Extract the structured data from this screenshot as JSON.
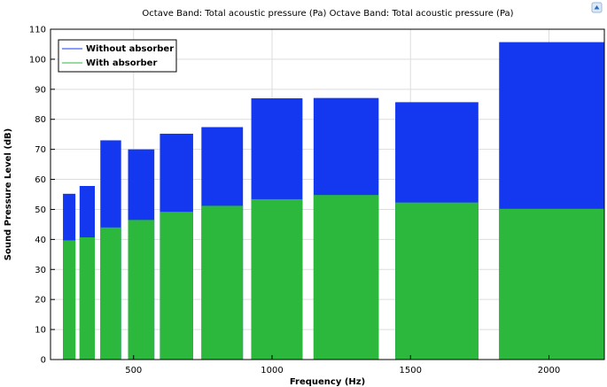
{
  "chart_data": {
    "type": "bar",
    "title": "Octave Band: Total acoustic pressure (Pa)  Octave Band: Total acoustic pressure (Pa)",
    "xlabel": "Frequency (Hz)",
    "ylabel": "Sound Pressure Level (dB)",
    "xlim": [
      200,
      2200
    ],
    "ylim": [
      0,
      110
    ],
    "xticks": [
      500,
      1000,
      1500,
      2000
    ],
    "yticks": [
      0,
      10,
      20,
      30,
      40,
      50,
      60,
      70,
      80,
      90,
      100,
      110
    ],
    "grid": true,
    "legend": "top-left",
    "bands": [
      {
        "low": 245,
        "high": 290
      },
      {
        "low": 305,
        "high": 360
      },
      {
        "low": 380,
        "high": 455
      },
      {
        "low": 480,
        "high": 575
      },
      {
        "low": 595,
        "high": 715
      },
      {
        "low": 745,
        "high": 895
      },
      {
        "low": 925,
        "high": 1110
      },
      {
        "low": 1150,
        "high": 1385
      },
      {
        "low": 1445,
        "high": 1745
      },
      {
        "low": 1820,
        "high": 2200
      }
    ],
    "series": [
      {
        "name": "Without absorber",
        "color": "#1437f0",
        "values": [
          55.2,
          57.8,
          73,
          70,
          75.2,
          77.4,
          87,
          87.1,
          85.7,
          105.7
        ]
      },
      {
        "name": "With absorber",
        "color": "#2bb83d",
        "values": [
          39.7,
          40.7,
          44,
          46.5,
          49.2,
          51.2,
          53.4,
          54.8,
          52.3,
          50.2
        ]
      }
    ]
  }
}
